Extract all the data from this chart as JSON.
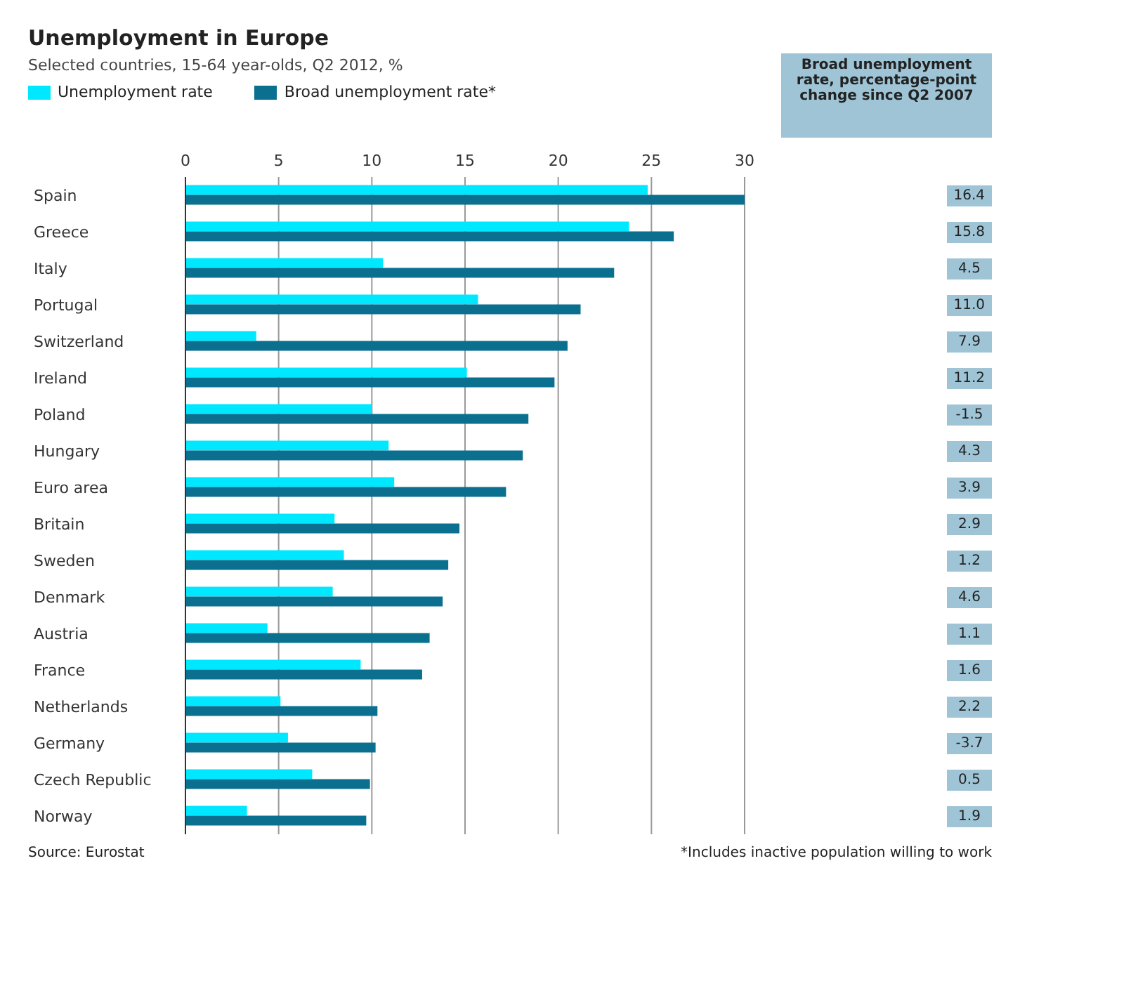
{
  "chart_data": [
    {
      "type": "bar",
      "orientation": "horizontal",
      "title": "Unemployment in Europe",
      "subtitle": "Selected countries, 15-64 year-olds, Q2 2012, %",
      "categories": [
        "Spain",
        "Greece",
        "Italy",
        "Portugal",
        "Switzerland",
        "Ireland",
        "Poland",
        "Hungary",
        "Euro area",
        "Britain",
        "Sweden",
        "Denmark",
        "Austria",
        "France",
        "Netherlands",
        "Germany",
        "Czech Republic",
        "Norway"
      ],
      "series": [
        {
          "name": "Unemployment rate",
          "color": "#00e8ff",
          "values": [
            24.8,
            23.8,
            10.6,
            15.7,
            3.8,
            15.1,
            10.0,
            10.9,
            11.2,
            8.0,
            8.5,
            7.9,
            4.4,
            9.4,
            5.1,
            5.5,
            6.8,
            3.3
          ]
        },
        {
          "name": "Broad unemployment rate*",
          "color": "#0b6f90",
          "values": [
            30.0,
            26.2,
            23.0,
            21.2,
            20.5,
            19.8,
            18.4,
            18.1,
            17.2,
            14.7,
            14.1,
            13.8,
            13.1,
            12.7,
            10.3,
            10.2,
            9.9,
            9.7
          ]
        }
      ],
      "xlim": [
        0,
        30
      ],
      "xticks": [
        0,
        5,
        10,
        15,
        20,
        25,
        30
      ],
      "grid": "x",
      "legend": "top left",
      "annotations": [
        "Source: Eurostat",
        "*Includes inactive population willing to work"
      ]
    },
    {
      "type": "other",
      "title": "Broad unemployment rate, percentage-point change since Q2 2007",
      "value_labels": [
        "16.4",
        "15.8",
        "4.5",
        "11.0",
        "7.9",
        "11.2",
        "-1.5",
        "4.3",
        "3.9",
        "2.9",
        "1.2",
        "4.6",
        "1.1",
        "1.6",
        "2.2",
        "-3.7",
        "0.5",
        "1.9"
      ]
    }
  ]
}
